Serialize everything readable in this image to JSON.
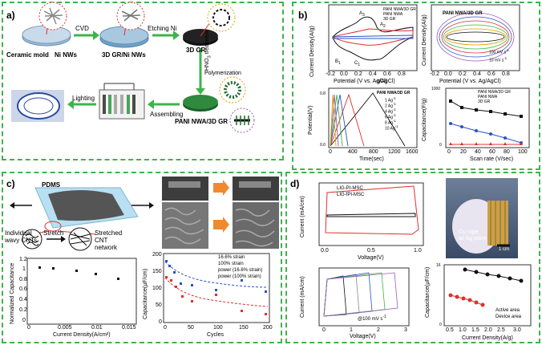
{
  "panels": {
    "a": {
      "label": "a)",
      "labels": {
        "ceramic_mold": "Ceramic mold",
        "ni_nws": "Ni NWs",
        "cvd": "CVD",
        "gr_ni": "3D GR/Ni NWs",
        "etching": "Etching Ni",
        "gr": "3D GR",
        "hno3": "HNO",
        "hno3_sub": "3",
        "hno3_rest": " treatment",
        "polymerization": "Polymerization",
        "pani": "PANI NWA/3D GR",
        "assembling": "Assembling",
        "lighting": "Lighting"
      }
    },
    "b": {
      "label": "b)",
      "cv_legend": [
        "PANI NWA/3D GR",
        "PANI NWA",
        "3D GR"
      ],
      "cv_ylabel": "Current Density(A/g)",
      "cv_xlabel": "Potential (V vs. Ag/AgCl)",
      "cv_peaks": [
        "A",
        "A",
        "B",
        "C",
        "B",
        "C"
      ],
      "cv_subs": [
        "3",
        "2",
        "1",
        "1",
        "3",
        "2"
      ],
      "cv_xticks": [
        "-0.2",
        "0.0",
        "0.2",
        "0.4",
        "0.6",
        "0.8"
      ],
      "cv_yticks": [
        "20",
        "10",
        "0",
        "-10",
        "-20",
        "-30",
        "-40"
      ],
      "cv_gcl": "gCl)",
      "scan_title": "PANI NWA/3D GR",
      "scan_ylabel": "Current Density(A/g)",
      "scan_xlabel": "Potential (V vs. Ag/AgCl)",
      "scan_hi": "100 mV s",
      "scan_lo": "10 mV s",
      "scan_sup": "-1",
      "scan_xticks": [
        "-0.2",
        "0.0",
        "0.2",
        "0.4",
        "0.6",
        "0.8"
      ],
      "gcd_title": "PANI NWA/3D GR",
      "gcd_ylabel": "Potential(V)",
      "gcd_xlabel": "Time(sec)",
      "gcd_legend": [
        "1 Ag",
        "2 Ag",
        "4 Ag",
        "6 Ag",
        "8 Ag",
        "10 Ag"
      ],
      "gcd_sup": "-1",
      "gcd_xticks": [
        "0",
        "400",
        "800",
        "1200",
        "1600"
      ],
      "gcd_yticks": [
        "0.8",
        "0.7",
        "0.6",
        "0.5",
        "0.4",
        "0.3",
        "0.2",
        "0.1",
        "0.0"
      ],
      "cap_ylabel": "Capacitance(F/g)",
      "cap_xlabel": "Scan rate (V/sec)",
      "cap_legend": [
        "PANI NWA/3D GR",
        "PANI NWA",
        "3D GR"
      ],
      "cap_xticks": [
        "0",
        "20",
        "40",
        "60",
        "80",
        "100"
      ],
      "cap_yticks": [
        "1000",
        "800",
        "600",
        "400",
        "200",
        "0"
      ]
    },
    "c": {
      "label": "c)",
      "pdms": "PDMS",
      "individual": "Individual\nwavy CNTs",
      "stretch": "Stretch",
      "stretched": "Stretched\nCNT\nnetwork",
      "norm_ylabel": "Normalized Capacitance",
      "norm_xlabel": "Current Density(A/cm²)",
      "norm_xticks": [
        "0",
        "0.005",
        "0.01",
        "0.015"
      ],
      "norm_yticks": [
        "1.2",
        "1",
        "0.8",
        "0.6",
        "0.4",
        "0.2",
        "0"
      ],
      "cyc_ylabel": "Capacitance(µF/cm)",
      "cyc_xlabel": "Cycles",
      "cyc_legend": [
        "16.6% strain",
        "100% strain",
        "power (16.6% strain)",
        "power (100% strain)"
      ],
      "cyc_xticks": [
        "0",
        "50",
        "100",
        "150",
        "200"
      ],
      "cyc_yticks": [
        "200",
        "150",
        "100",
        "50",
        "0"
      ]
    },
    "d": {
      "label": "d)",
      "cv_legend": [
        "LIG-PI-MSC",
        "LIG-fPI-MSC"
      ],
      "cv_ylabel": "Current (mA/cm)",
      "cv_xlabel": "Voltage(V)",
      "cv_xticks": [
        "0.0",
        "0.5",
        "1.0"
      ],
      "photo_text1": "Cu tape",
      "photo_text2": "w/ Ag paint",
      "photo_scale": "1 cm",
      "cv2_ylabel": "Current (mA/cm)",
      "cv2_xlabel": "Voltage(V)",
      "cv2_note": "@100 mV s",
      "cv2_sup": "-1",
      "cv2_xticks": [
        "0",
        "1",
        "2",
        "3"
      ],
      "cap_ylabel": "Capacitance(µF/cm)",
      "cap_xlabel": "Current Density(A/g)",
      "cap_legend": [
        "Active area",
        "Device area"
      ],
      "cap_xticks": [
        "0.5",
        "1.0",
        "1.5",
        "2.0",
        "2.5",
        "3.0"
      ],
      "cap_yticks": [
        "16",
        "14",
        "12",
        "10",
        "8",
        "6",
        "4",
        "2",
        "0"
      ]
    }
  },
  "colors": {
    "frame": "#3cb44b",
    "arrow": "#3cb44b",
    "red": "#e0302c",
    "blue": "#2b52c7",
    "black": "#111111"
  }
}
